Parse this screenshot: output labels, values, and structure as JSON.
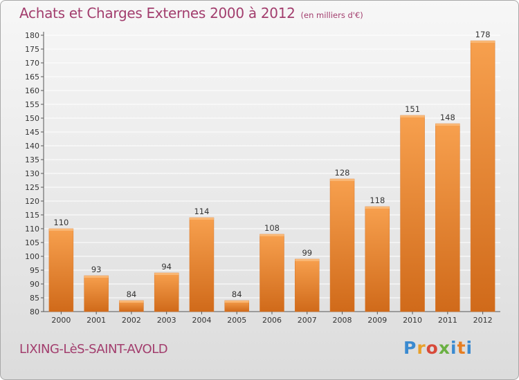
{
  "title": "Achats et Charges Externes 2000 à 2012",
  "subtitle": "(en milliers d'€)",
  "commune": "LIXING-LèS-SAINT-AVOLD",
  "logo": {
    "text": "Proxiti",
    "colors": [
      "#3a8ad0",
      "#e8a02a",
      "#d84a3a",
      "#6ab042",
      "#3a8ad0",
      "#e67e22"
    ]
  },
  "colors": {
    "title": "#a23d6d",
    "bar_light": "#f7a04e",
    "bar_dark": "#d06a1a",
    "grid": "#ffffff"
  },
  "chart_data": {
    "type": "bar",
    "title": "Achats et Charges Externes 2000 à 2012",
    "xlabel": "",
    "ylabel": "",
    "categories": [
      "2000",
      "2001",
      "2002",
      "2003",
      "2004",
      "2005",
      "2006",
      "2007",
      "2008",
      "2009",
      "2010",
      "2011",
      "2012"
    ],
    "values": [
      110,
      93,
      84,
      94,
      114,
      84,
      108,
      99,
      128,
      118,
      151,
      148,
      178
    ],
    "data_labels": [
      "110",
      "93",
      "84",
      "94",
      "114",
      "84",
      "108",
      "99",
      "128",
      "118",
      "151",
      "148",
      "178"
    ],
    "ylim": [
      80,
      180
    ],
    "yticks": [
      80,
      85,
      90,
      95,
      100,
      105,
      110,
      115,
      120,
      125,
      130,
      135,
      140,
      145,
      150,
      155,
      160,
      165,
      170,
      175,
      180
    ],
    "grid": true,
    "legend": "none"
  }
}
